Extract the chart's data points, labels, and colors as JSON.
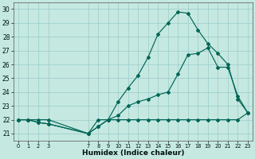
{
  "xlabel": "Humidex (Indice chaleur)",
  "bg_color": "#c5e8e0",
  "grid_color": "#99cccc",
  "line_color": "#006655",
  "series1_x": [
    0,
    1,
    2,
    3,
    7,
    8,
    9,
    10,
    11,
    12,
    13,
    14,
    15,
    16,
    17,
    18,
    19,
    20,
    21,
    22,
    23
  ],
  "series1_y": [
    22,
    22,
    22,
    22,
    21,
    22,
    22,
    22,
    22,
    22,
    22,
    22,
    22,
    22,
    22,
    22,
    22,
    22,
    22,
    22,
    22.5
  ],
  "series2_x": [
    0,
    1,
    2,
    3,
    7,
    8,
    9,
    10,
    11,
    12,
    13,
    14,
    15,
    16,
    17,
    18,
    19,
    20,
    21,
    22,
    23
  ],
  "series2_y": [
    22,
    22,
    21.8,
    21.7,
    21.0,
    21.5,
    22.0,
    22.3,
    23.0,
    23.3,
    23.5,
    23.8,
    24.0,
    25.3,
    26.7,
    26.8,
    27.2,
    25.8,
    25.8,
    23.7,
    22.5
  ],
  "series3_x": [
    0,
    1,
    2,
    3,
    7,
    8,
    9,
    10,
    11,
    12,
    13,
    14,
    15,
    16,
    17,
    18,
    19,
    20,
    21,
    22,
    23
  ],
  "series3_y": [
    22,
    22,
    21.8,
    21.7,
    21.0,
    21.5,
    22.0,
    23.3,
    24.3,
    25.2,
    26.5,
    28.2,
    29.0,
    29.8,
    29.7,
    28.5,
    27.5,
    26.8,
    26.0,
    23.5,
    22.5
  ],
  "xlim": [
    -0.5,
    23.5
  ],
  "ylim": [
    20.5,
    30.5
  ],
  "yticks": [
    21,
    22,
    23,
    24,
    25,
    26,
    27,
    28,
    29,
    30
  ],
  "xticks": [
    0,
    1,
    2,
    3,
    7,
    8,
    9,
    10,
    11,
    12,
    13,
    14,
    15,
    16,
    17,
    18,
    19,
    20,
    21,
    22,
    23
  ],
  "figsize": [
    3.2,
    2.0
  ],
  "dpi": 100
}
